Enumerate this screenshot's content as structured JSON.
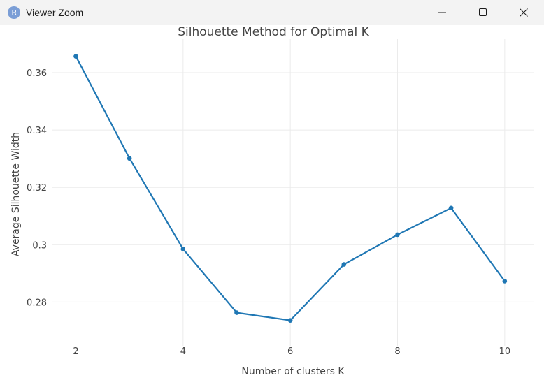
{
  "window": {
    "title": "Viewer Zoom",
    "icon_letter": "R",
    "icons": {
      "app": "r-logo-icon",
      "minimize": "minimize-icon",
      "maximize": "maximize-icon",
      "close": "close-icon"
    }
  },
  "chart_data": {
    "type": "line",
    "title": "Silhouette Method for Optimal K",
    "xlabel": "Number of clusters K",
    "ylabel": "Average Silhouette Width",
    "x": [
      2,
      3,
      4,
      5,
      6,
      7,
      8,
      9,
      10
    ],
    "series": [
      {
        "values": [
          0.3657,
          0.3301,
          0.2985,
          0.2763,
          0.2736,
          0.2931,
          0.3035,
          0.3128,
          0.2873
        ],
        "color": "#1f77b4"
      }
    ],
    "xticks": [
      2,
      4,
      6,
      8,
      10
    ],
    "xtick_labels": [
      "2",
      "4",
      "6",
      "8",
      "10"
    ],
    "yticks": [
      0.28,
      0.3,
      0.32,
      0.34,
      0.36
    ],
    "ytick_labels": [
      "0.28",
      "0.3",
      "0.32",
      "0.34",
      "0.36"
    ],
    "xlim": [
      1.55,
      10.55
    ],
    "ylim": [
      0.2645,
      0.3717
    ],
    "grid": true,
    "legend": "none"
  }
}
